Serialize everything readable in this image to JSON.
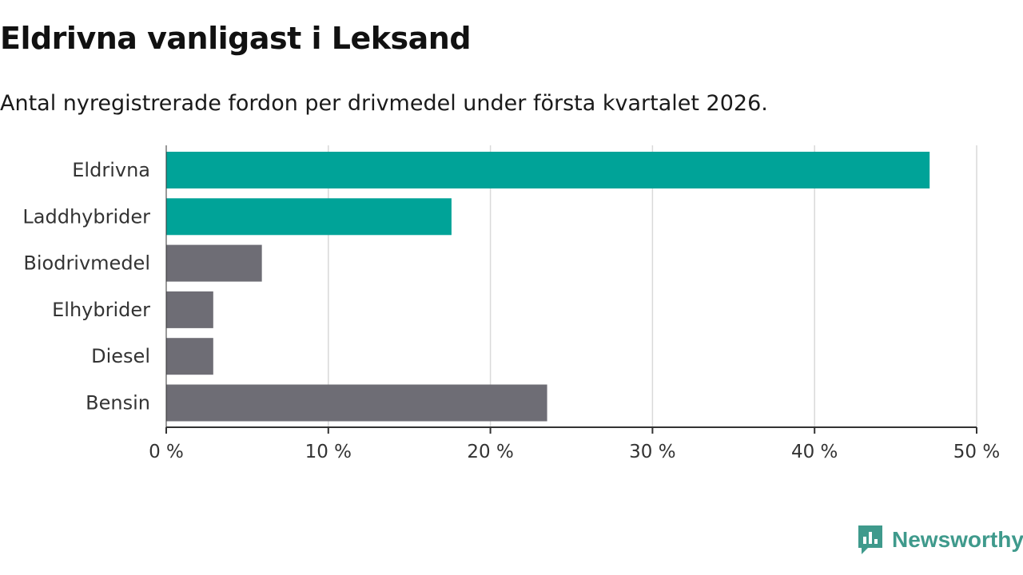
{
  "chart_data": {
    "type": "bar",
    "orientation": "horizontal",
    "title": "Eldrivna vanligast i Leksand",
    "subtitle": "Antal nyregistrerade fordon per drivmedel under första kvartalet 2026.",
    "categories": [
      "Eldrivna",
      "Laddhybrider",
      "Biodrivmedel",
      "Elhybrider",
      "Diesel",
      "Bensin"
    ],
    "values": [
      47.1,
      17.6,
      5.9,
      2.9,
      2.9,
      23.5
    ],
    "highlight": [
      true,
      true,
      false,
      false,
      false,
      false
    ],
    "xlim": [
      0,
      50
    ],
    "xticks": [
      0,
      10,
      20,
      30,
      40,
      50
    ],
    "xtick_labels": [
      "0 %",
      "10 %",
      "20 %",
      "30 %",
      "40 %",
      "50 %"
    ],
    "xlabel": "",
    "ylabel": "",
    "grid": true,
    "colors": {
      "highlight": "#00a398",
      "default": "#6e6d75",
      "grid": "#d9d9d9",
      "axis": "#333333"
    }
  },
  "branding": {
    "logo_text": "Newsworthy",
    "logo_icon": "bar-chart-speech-bubble-icon",
    "logo_color": "#3f9a8c"
  }
}
